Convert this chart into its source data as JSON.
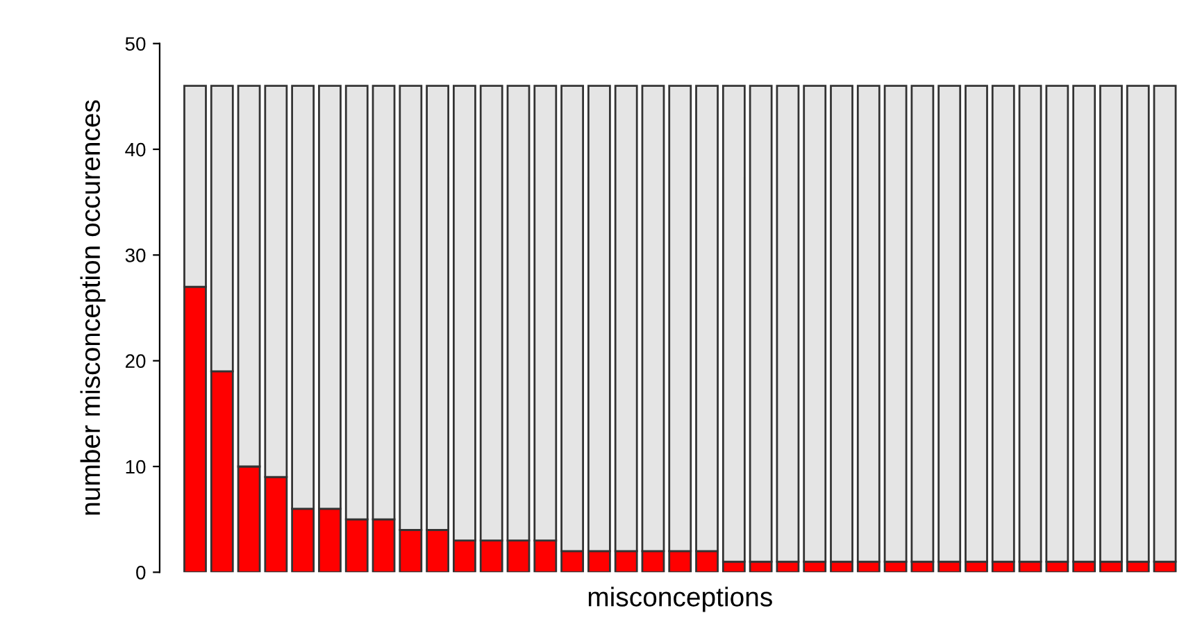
{
  "chart_data": {
    "type": "bar",
    "stacked": true,
    "xlabel": "misconceptions",
    "ylabel": "number misconception occurences",
    "categories": [
      null,
      null,
      null,
      null,
      null,
      null,
      null,
      null,
      null,
      null,
      null,
      null,
      null,
      null,
      null,
      null,
      null,
      null,
      null,
      null,
      null,
      null,
      null,
      null,
      null,
      null,
      null,
      null,
      null,
      null,
      null,
      null,
      null,
      null,
      null,
      null,
      null
    ],
    "series": [
      {
        "color": "#ff0000",
        "values": [
          27,
          19,
          10,
          9,
          6,
          6,
          5,
          5,
          4,
          4,
          3,
          3,
          3,
          3,
          2,
          2,
          2,
          2,
          2,
          2,
          1,
          1,
          1,
          1,
          1,
          1,
          1,
          1,
          1,
          1,
          1,
          1,
          1,
          1,
          1,
          1,
          1
        ]
      },
      {
        "color": "#e5e5e5",
        "values": [
          19,
          27,
          36,
          37,
          40,
          40,
          41,
          41,
          42,
          42,
          43,
          43,
          43,
          43,
          44,
          44,
          44,
          44,
          44,
          44,
          45,
          45,
          45,
          45,
          45,
          45,
          45,
          45,
          45,
          45,
          45,
          45,
          45,
          45,
          45,
          45,
          45
        ]
      }
    ],
    "ylim": [
      0,
      50
    ],
    "yticks": [
      0,
      10,
      20,
      30,
      40,
      50
    ],
    "grid": false
  }
}
